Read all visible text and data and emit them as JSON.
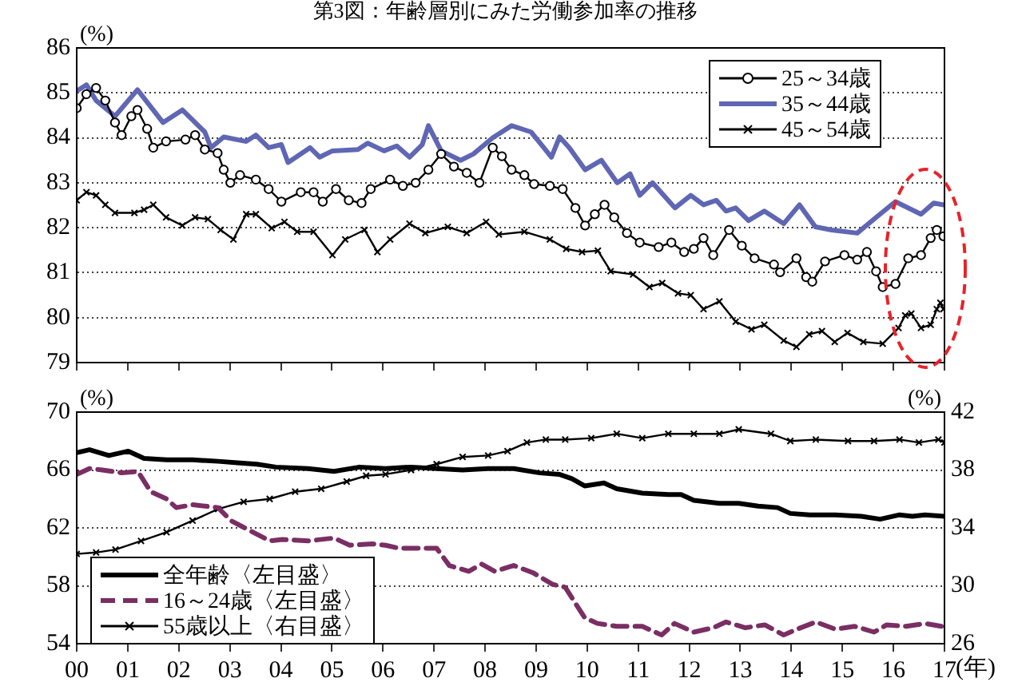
{
  "chart_data": [
    {
      "type": "line",
      "title": "第3図：年齢層別にみた労働参加率の推移",
      "ylabel": "(%)",
      "xlim": [
        0,
        17
      ],
      "xticks": [
        0,
        1,
        2,
        3,
        4,
        5,
        6,
        7,
        8,
        9,
        10,
        11,
        12,
        13,
        14,
        15,
        16,
        17
      ],
      "ylim": [
        79,
        86
      ],
      "yticks": [
        79,
        80,
        81,
        82,
        83,
        84,
        85,
        86
      ],
      "tick_labels": "y",
      "grid": "y",
      "legend": "top right",
      "series": [
        {
          "name": "25～34歳",
          "color": "#000000",
          "marker": "circle",
          "x": [
            0,
            0.19,
            0.38,
            0.56,
            0.75,
            0.88,
            1.07,
            1.19,
            1.38,
            1.5,
            1.75,
            2.13,
            2.32,
            2.51,
            2.76,
            2.88,
            3.01,
            3.2,
            3.51,
            3.76,
            4.01,
            4.39,
            4.64,
            4.82,
            5.08,
            5.33,
            5.58,
            5.76,
            6.14,
            6.39,
            6.64,
            6.89,
            7.14,
            7.39,
            7.64,
            7.89,
            8.15,
            8.33,
            8.52,
            8.77,
            8.96,
            9.27,
            9.52,
            9.77,
            9.96,
            10.15,
            10.34,
            10.53,
            10.78,
            11.03,
            11.4,
            11.65,
            11.9,
            12.09,
            12.28,
            12.47,
            12.78,
            13.03,
            13.28,
            13.66,
            13.78,
            14.1,
            14.29,
            14.41,
            14.66,
            15.04,
            15.29,
            15.48,
            15.66,
            15.79,
            16.04,
            16.29,
            16.54,
            16.73,
            16.85,
            16.98
          ],
          "values": [
            84.66,
            84.97,
            85.11,
            84.83,
            84.34,
            84.06,
            84.48,
            84.62,
            84.2,
            83.78,
            83.92,
            83.96,
            84.06,
            83.74,
            83.66,
            83.29,
            83.0,
            83.17,
            83.07,
            82.86,
            82.58,
            82.79,
            82.79,
            82.58,
            82.86,
            82.61,
            82.55,
            82.86,
            83.07,
            82.93,
            83.0,
            83.29,
            83.64,
            83.36,
            83.22,
            83.0,
            83.78,
            83.59,
            83.29,
            83.17,
            82.97,
            82.93,
            82.86,
            82.44,
            82.05,
            82.3,
            82.51,
            82.23,
            81.88,
            81.67,
            81.57,
            81.67,
            81.46,
            81.53,
            81.77,
            81.39,
            81.95,
            81.6,
            81.32,
            81.18,
            81.01,
            81.32,
            80.9,
            80.8,
            81.25,
            81.39,
            81.29,
            81.46,
            81.03,
            80.68,
            80.75,
            81.32,
            81.39,
            81.77,
            81.95,
            81.81
          ]
        },
        {
          "name": "35～44歳",
          "color": "#5f66b3",
          "marker": "none",
          "x": [
            0,
            0.19,
            0.38,
            0.75,
            1.19,
            1.69,
            2.07,
            2.51,
            2.63,
            2.88,
            3.32,
            3.51,
            3.76,
            4.01,
            4.14,
            4.57,
            4.76,
            5.01,
            5.51,
            5.7,
            6.02,
            6.27,
            6.52,
            6.77,
            6.89,
            7.14,
            7.52,
            7.77,
            8.15,
            8.52,
            8.9,
            9.15,
            9.3,
            9.46,
            9.65,
            9.96,
            10.28,
            10.59,
            10.84,
            11.03,
            11.28,
            11.72,
            12.03,
            12.28,
            12.53,
            12.72,
            12.91,
            13.16,
            13.47,
            13.85,
            14.16,
            14.47,
            14.79,
            15.29,
            15.66,
            16.04,
            16.54,
            16.79,
            16.98
          ],
          "values": [
            85.04,
            85.18,
            84.83,
            84.48,
            85.07,
            84.34,
            84.62,
            84.13,
            83.78,
            84.02,
            83.92,
            84.06,
            83.78,
            83.85,
            83.45,
            83.78,
            83.57,
            83.71,
            83.74,
            83.88,
            83.71,
            83.82,
            83.57,
            83.85,
            84.27,
            83.71,
            83.5,
            83.64,
            84.0,
            84.27,
            84.13,
            83.78,
            83.57,
            84.02,
            83.78,
            83.29,
            83.5,
            83.0,
            83.2,
            82.72,
            83.0,
            82.44,
            82.72,
            82.51,
            82.61,
            82.37,
            82.44,
            82.16,
            82.37,
            82.09,
            82.51,
            82.02,
            81.95,
            81.88,
            82.23,
            82.58,
            82.3,
            82.55,
            82.51
          ]
        },
        {
          "name": "45～54歳",
          "color": "#000000",
          "marker": "cross",
          "x": [
            0,
            0.19,
            0.38,
            0.56,
            0.75,
            1.13,
            1.32,
            1.5,
            1.75,
            2.07,
            2.32,
            2.57,
            2.82,
            3.07,
            3.32,
            3.51,
            3.82,
            4.07,
            4.32,
            4.64,
            5.01,
            5.26,
            5.64,
            5.89,
            6.14,
            6.52,
            6.83,
            7.27,
            7.64,
            8.02,
            8.27,
            8.77,
            9.27,
            9.59,
            9.9,
            10.21,
            10.46,
            10.9,
            11.22,
            11.47,
            11.78,
            12.03,
            12.28,
            12.59,
            12.91,
            13.22,
            13.47,
            13.85,
            14.1,
            14.35,
            14.6,
            14.85,
            15.1,
            15.41,
            15.79,
            16.1,
            16.23,
            16.35,
            16.54,
            16.73,
            16.85,
            16.92,
            16.98
          ],
          "values": [
            82.61,
            82.79,
            82.72,
            82.51,
            82.33,
            82.33,
            82.4,
            82.51,
            82.23,
            82.05,
            82.23,
            82.19,
            81.95,
            81.74,
            82.3,
            82.3,
            81.99,
            82.13,
            81.91,
            81.91,
            81.39,
            81.74,
            81.95,
            81.46,
            81.74,
            82.09,
            81.88,
            82.02,
            81.88,
            82.13,
            81.85,
            81.91,
            81.74,
            81.53,
            81.46,
            81.49,
            81.03,
            80.96,
            80.68,
            80.77,
            80.54,
            80.5,
            80.19,
            80.36,
            79.91,
            79.74,
            79.84,
            79.49,
            79.35,
            79.63,
            79.7,
            79.46,
            79.66,
            79.46,
            79.42,
            79.77,
            80.05,
            80.09,
            79.77,
            79.84,
            80.19,
            80.33,
            80.19
          ]
        }
      ]
    },
    {
      "type": "line",
      "ylabel": "(%)",
      "y2label": "(%)",
      "xlabel": "(年)",
      "xlim": [
        0,
        17
      ],
      "xticks": [
        {
          "value": 0,
          "label": "00"
        },
        {
          "value": 1,
          "label": "01"
        },
        {
          "value": 2,
          "label": "02"
        },
        {
          "value": 3,
          "label": "03"
        },
        {
          "value": 4,
          "label": "04"
        },
        {
          "value": 5,
          "label": "05"
        },
        {
          "value": 6,
          "label": "06"
        },
        {
          "value": 7,
          "label": "07"
        },
        {
          "value": 8,
          "label": "08"
        },
        {
          "value": 9,
          "label": "09"
        },
        10,
        11,
        12,
        13,
        14,
        15,
        16,
        17
      ],
      "ylim": [
        54,
        70
      ],
      "yticks": [
        54,
        58,
        62,
        66,
        70
      ],
      "y2lim": [
        26,
        42
      ],
      "y2ticks": [
        26,
        30,
        34,
        38,
        42
      ],
      "grid": "y",
      "legend": "bottom left",
      "series": [
        {
          "name": "全年齢〈左目盛〉",
          "color": "#000000",
          "marker": "none",
          "x": [
            0,
            0.25,
            0.63,
            1.01,
            1.32,
            1.76,
            2.27,
            2.77,
            3.15,
            3.53,
            3.9,
            4.53,
            5.04,
            5.54,
            6.05,
            6.55,
            7.05,
            7.56,
            8.06,
            8.56,
            9.07,
            9.45,
            9.7,
            9.95,
            10.33,
            10.58,
            11.08,
            11.59,
            11.84,
            12.09,
            12.59,
            12.97,
            13.35,
            13.73,
            13.98,
            14.36,
            14.86,
            15.37,
            15.74,
            16.12,
            16.37,
            16.62,
            17
          ],
          "values": [
            67.2,
            67.4,
            67.0,
            67.3,
            66.8,
            66.7,
            66.7,
            66.6,
            66.5,
            66.4,
            66.2,
            66.1,
            65.9,
            66.2,
            66.1,
            66.2,
            66.1,
            66.0,
            66.1,
            66.1,
            65.8,
            65.7,
            65.4,
            64.9,
            65.1,
            64.7,
            64.4,
            64.3,
            64.3,
            63.9,
            63.7,
            63.7,
            63.5,
            63.4,
            63.0,
            62.9,
            62.9,
            62.8,
            62.6,
            62.9,
            62.8,
            62.9,
            62.8
          ]
        },
        {
          "name": "16～24歳〈左目盛〉",
          "color": "#7a2e63",
          "marker": "none",
          "line_style": "dashed",
          "x": [
            0,
            0.25,
            0.5,
            0.88,
            1.2,
            1.45,
            1.76,
            1.95,
            2.27,
            2.77,
            3.02,
            3.4,
            3.78,
            4.03,
            4.53,
            5.04,
            5.35,
            5.79,
            6.05,
            6.3,
            6.68,
            7.05,
            7.3,
            7.68,
            7.93,
            8.19,
            8.56,
            8.94,
            9.32,
            9.57,
            9.95,
            10.2,
            10.58,
            11.08,
            11.46,
            11.71,
            12.09,
            12.47,
            12.72,
            13.1,
            13.48,
            13.85,
            14.11,
            14.48,
            14.86,
            15.24,
            15.62,
            15.87,
            16.25,
            16.62,
            16.94
          ],
          "values": [
            65.7,
            66.1,
            66.0,
            65.8,
            65.9,
            64.5,
            64.0,
            63.4,
            63.6,
            63.4,
            62.5,
            61.8,
            61.1,
            61.2,
            61.1,
            61.3,
            60.8,
            60.9,
            60.8,
            60.6,
            60.6,
            60.6,
            59.4,
            59.0,
            59.5,
            59.0,
            59.4,
            58.9,
            58.1,
            57.9,
            55.8,
            55.4,
            55.2,
            55.2,
            54.6,
            55.4,
            54.8,
            55.1,
            55.5,
            55.1,
            55.3,
            54.6,
            55.0,
            55.5,
            55.0,
            55.2,
            54.8,
            55.3,
            55.2,
            55.4,
            55.2
          ]
        },
        {
          "name": "55歳以上〈右目盛〉",
          "color": "#000000",
          "marker": "cross",
          "axis": "y2",
          "x": [
            0,
            0.38,
            0.76,
            1.26,
            1.76,
            2.27,
            2.77,
            3.27,
            3.78,
            4.28,
            4.79,
            5.29,
            5.67,
            6.05,
            6.55,
            7.05,
            7.56,
            8.06,
            8.44,
            8.82,
            9.19,
            9.57,
            10.08,
            10.58,
            11.08,
            11.59,
            12.09,
            12.59,
            12.97,
            13.6,
            13.98,
            14.48,
            15.11,
            15.62,
            16.12,
            16.5,
            16.88,
            17
          ],
          "values": [
            32.2,
            32.3,
            32.5,
            33.1,
            33.7,
            34.5,
            35.3,
            35.8,
            36.0,
            36.5,
            36.7,
            37.2,
            37.6,
            37.7,
            38.0,
            38.4,
            38.9,
            39.0,
            39.3,
            39.9,
            40.1,
            40.1,
            40.2,
            40.5,
            40.2,
            40.5,
            40.5,
            40.5,
            40.8,
            40.5,
            40.0,
            40.1,
            40.0,
            40.0,
            40.1,
            39.9,
            40.1,
            39.9
          ]
        }
      ]
    }
  ]
}
